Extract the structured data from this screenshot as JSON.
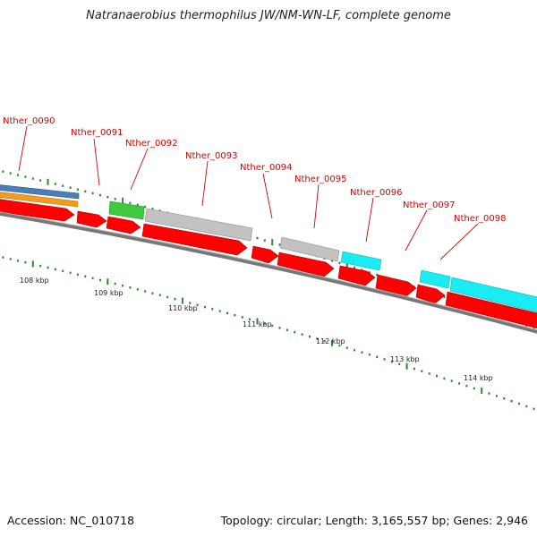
{
  "title": "Natranaerobius thermophilus JW/NM-WN-LF, complete genome",
  "footer": {
    "accession": "Accession: NC_010718",
    "summary": "Topology: circular; Length: 3,165,557 bp; Genes: 2,946"
  },
  "colors": {
    "cds_red": "#ff0000",
    "blue_feature": "#4a7fb5",
    "orange_feature": "#f49a1f",
    "green_feature": "#3fc93f",
    "gray_feature": "#bdbdbd",
    "cyan_feature": "#19ecf3",
    "label_red": "#d40000",
    "tick_green": "#2a8a2a",
    "backbone": "#808080"
  },
  "gene_labels": [
    "Nther_0090",
    "Nther_0091",
    "Nther_0092",
    "Nther_0093",
    "Nther_0094",
    "Nther_0095",
    "Nther_0096",
    "Nther_0097",
    "Nther_0098"
  ],
  "scale_labels": [
    "108 kbp",
    "109 kbp",
    "110 kbp",
    "111 kbp",
    "112 kbp",
    "113 kbp",
    "114 kbp"
  ]
}
